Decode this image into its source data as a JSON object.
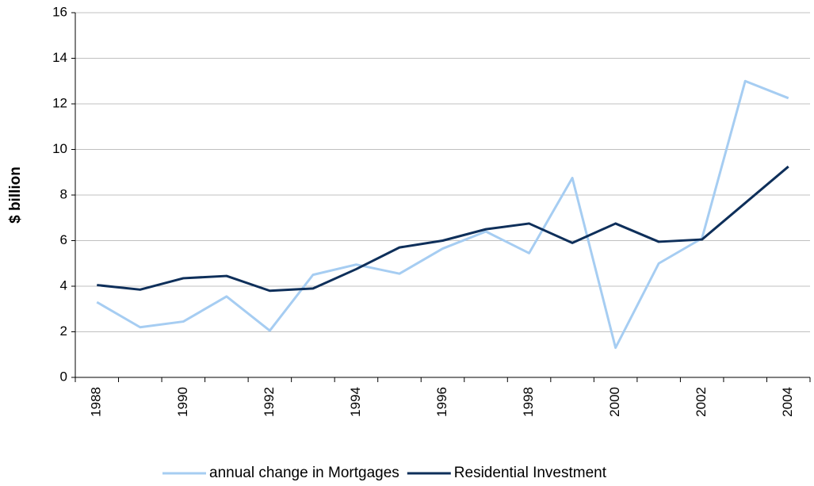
{
  "chart_data": {
    "type": "line",
    "y_label": "$ billion",
    "categories": [
      "1988",
      null,
      "1990",
      null,
      "1992",
      null,
      "1994",
      null,
      "1996",
      null,
      "1998",
      null,
      "2000",
      null,
      "2002",
      null,
      "2004"
    ],
    "series": [
      {
        "name": "annual change in Mortgages",
        "color": "#a6cdf2",
        "values": [
          3.3,
          2.2,
          2.45,
          3.55,
          2.05,
          4.5,
          4.95,
          4.55,
          5.65,
          6.4,
          5.45,
          8.75,
          1.3,
          5.0,
          6.1,
          13.0,
          12.25
        ]
      },
      {
        "name": "Residential Investment",
        "color": "#0e2f5a",
        "values": [
          4.05,
          3.85,
          4.35,
          4.45,
          3.8,
          3.9,
          4.75,
          5.7,
          6.0,
          6.5,
          6.75,
          5.9,
          6.75,
          5.95,
          6.05,
          7.65,
          9.25
        ]
      }
    ],
    "ylim": [
      0,
      16
    ],
    "yticks": [
      0,
      2,
      4,
      6,
      8,
      10,
      12,
      14,
      16
    ],
    "grid": true
  }
}
